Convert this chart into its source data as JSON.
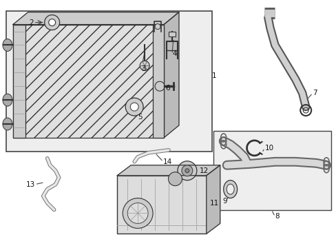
{
  "bg_color": "#ffffff",
  "line_color": "#333333",
  "light_gray": "#e8e8e8",
  "fig_width": 4.89,
  "fig_height": 3.6,
  "dpi": 100
}
